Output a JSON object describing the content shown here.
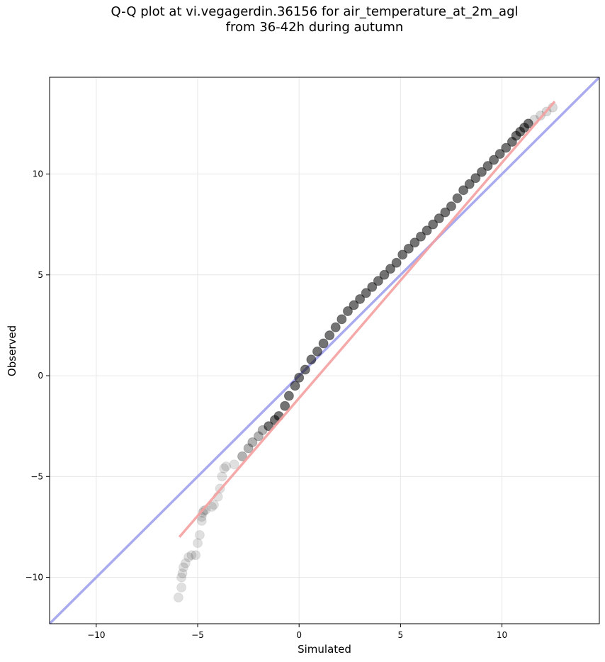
{
  "chart_data": {
    "type": "scatter",
    "title_line1": "Q-Q plot at vi.vegagerdin.36156 for air_temperature_at_2m_agl",
    "title_line2": "from 36-42h during autumn",
    "xlabel": "Simulated",
    "ylabel": "Observed",
    "xlim": [
      -12.3,
      14.8
    ],
    "ylim": [
      -12.3,
      14.8
    ],
    "xticks": [
      -10,
      -5,
      0,
      5,
      10
    ],
    "yticks": [
      -10,
      -5,
      0,
      5,
      10
    ],
    "xtick_labels": [
      "−10",
      "−5",
      "0",
      "5",
      "10"
    ],
    "ytick_labels": [
      "−10",
      "−5",
      "0",
      "5",
      "10"
    ],
    "grid": true,
    "reference_line": {
      "slope": 1,
      "intercept": 0,
      "color": "#aaaaee"
    },
    "fit_line": {
      "x": [
        -5.9,
        12.6
      ],
      "y": [
        -8.0,
        13.6
      ],
      "color": "#f4a0a0"
    },
    "points": {
      "color": "#000000",
      "x": [
        -5.95,
        -5.8,
        -5.8,
        -5.75,
        -5.7,
        -5.6,
        -5.45,
        -5.3,
        -5.1,
        -5.0,
        -4.9,
        -4.8,
        -4.8,
        -4.75,
        -4.7,
        -4.6,
        -4.3,
        -4.2,
        -4.0,
        -3.9,
        -3.8,
        -3.7,
        -3.6,
        -3.2,
        -2.8,
        -2.5,
        -2.3,
        -2.0,
        -1.8,
        -1.5,
        -1.2,
        -1.0,
        -0.7,
        -0.5,
        -0.2,
        0.0,
        0.3,
        0.6,
        0.9,
        1.2,
        1.5,
        1.8,
        2.1,
        2.4,
        2.7,
        3.0,
        3.3,
        3.6,
        3.9,
        4.2,
        4.5,
        4.8,
        5.1,
        5.4,
        5.7,
        6.0,
        6.3,
        6.6,
        6.9,
        7.2,
        7.5,
        7.8,
        8.1,
        8.4,
        8.7,
        9.0,
        9.3,
        9.6,
        9.9,
        10.2,
        10.5,
        10.7,
        10.9,
        11.1,
        11.3,
        11.6,
        11.9,
        12.2,
        12.5
      ],
      "y": [
        -11.0,
        -10.5,
        -10.0,
        -9.8,
        -9.5,
        -9.3,
        -9.0,
        -8.9,
        -8.9,
        -8.3,
        -7.9,
        -7.2,
        -7.0,
        -6.8,
        -6.7,
        -6.65,
        -6.5,
        -6.4,
        -6.0,
        -5.6,
        -5.0,
        -4.6,
        -4.5,
        -4.4,
        -4.0,
        -3.6,
        -3.3,
        -3.0,
        -2.7,
        -2.5,
        -2.2,
        -2.0,
        -1.5,
        -1.0,
        -0.5,
        -0.1,
        0.3,
        0.8,
        1.2,
        1.6,
        2.0,
        2.4,
        2.8,
        3.2,
        3.5,
        3.8,
        4.1,
        4.4,
        4.7,
        5.0,
        5.3,
        5.6,
        6.0,
        6.3,
        6.6,
        6.9,
        7.2,
        7.5,
        7.8,
        8.1,
        8.4,
        8.8,
        9.2,
        9.5,
        9.8,
        10.1,
        10.4,
        10.7,
        11.0,
        11.3,
        11.6,
        11.9,
        12.1,
        12.3,
        12.5,
        12.7,
        12.9,
        13.1,
        13.3
      ]
    }
  }
}
